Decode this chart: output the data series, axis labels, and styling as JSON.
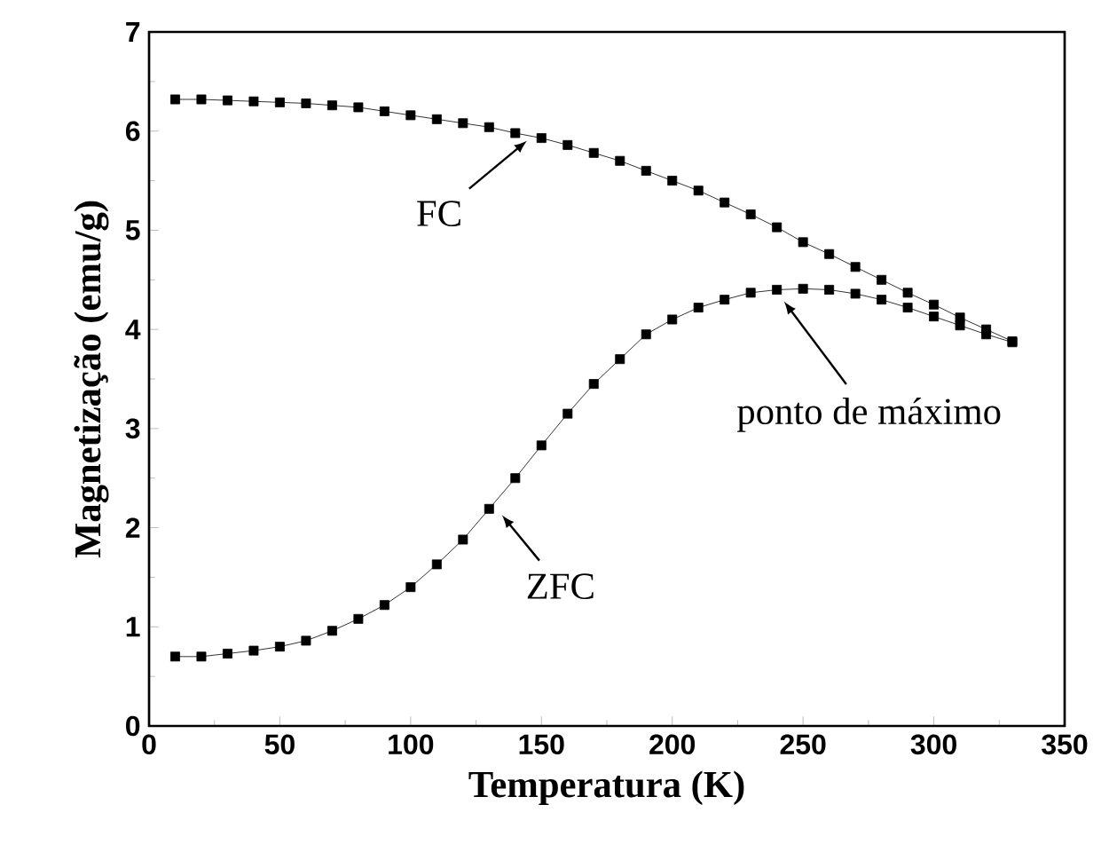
{
  "chart_data": {
    "type": "line",
    "xlabel": "Temperatura (K)",
    "ylabel": "Magnetização (emu/g)",
    "xlim": [
      0,
      350
    ],
    "ylim": [
      0,
      7
    ],
    "xticks": [
      0,
      50,
      100,
      150,
      200,
      250,
      300,
      350
    ],
    "yticks": [
      0,
      1,
      2,
      3,
      4,
      5,
      6,
      7
    ],
    "marker": "square",
    "x": [
      10,
      20,
      30,
      40,
      50,
      60,
      70,
      80,
      90,
      100,
      110,
      120,
      130,
      140,
      150,
      160,
      170,
      180,
      190,
      200,
      210,
      220,
      230,
      240,
      250,
      260,
      270,
      280,
      290,
      300,
      310,
      320,
      330
    ],
    "series": [
      {
        "color": "#000000",
        "values": [
          6.32,
          6.32,
          6.31,
          6.3,
          6.29,
          6.28,
          6.26,
          6.24,
          6.2,
          6.16,
          6.12,
          6.08,
          6.04,
          5.98,
          5.93,
          5.86,
          5.78,
          5.7,
          5.6,
          5.5,
          5.4,
          5.28,
          5.16,
          5.03,
          4.88,
          4.76,
          4.63,
          4.5,
          4.37,
          4.25,
          4.12,
          4.0,
          3.88
        ]
      },
      {
        "color": "#000000",
        "values": [
          0.7,
          0.7,
          0.73,
          0.76,
          0.8,
          0.86,
          0.96,
          1.08,
          1.22,
          1.4,
          1.63,
          1.88,
          2.19,
          2.5,
          2.83,
          3.15,
          3.45,
          3.7,
          3.95,
          4.1,
          4.22,
          4.3,
          4.37,
          4.4,
          4.41,
          4.4,
          4.36,
          4.3,
          4.22,
          4.13,
          4.04,
          3.95,
          3.87
        ]
      }
    ],
    "annotations": [
      {
        "text": "FC",
        "x": 148,
        "y": 5.98
      },
      {
        "text": "ZFC",
        "x": 132,
        "y": 2.22
      },
      {
        "text": "ponto de máximo",
        "x": 240,
        "y": 4.38
      }
    ]
  }
}
